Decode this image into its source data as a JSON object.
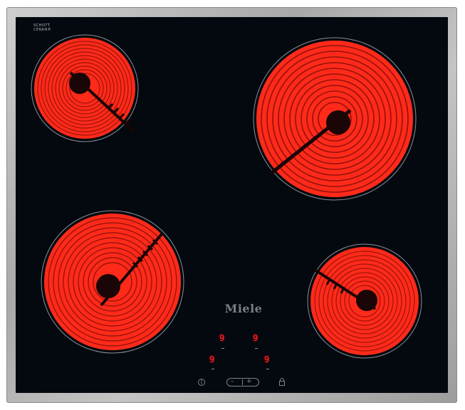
{
  "glass_logo": {
    "line1": "SCHOTT",
    "line2": "CERAN®"
  },
  "brand": "Miele",
  "displays": [
    {
      "id": "front-left-top",
      "value": "9"
    },
    {
      "id": "rear-right-top",
      "value": "9"
    },
    {
      "id": "front-left-bottom",
      "value": "9"
    },
    {
      "id": "rear-right-bottom",
      "value": "9"
    }
  ],
  "controls": {
    "minus_label": "–",
    "plus_label": "+",
    "power_icon": "power-icon",
    "lock_icon": "lock-icon"
  },
  "colors": {
    "glass": "#03090f",
    "heating_element": "#ff2a1a",
    "display_red": "#ff2a2a",
    "frame": "#b0b0b0"
  }
}
